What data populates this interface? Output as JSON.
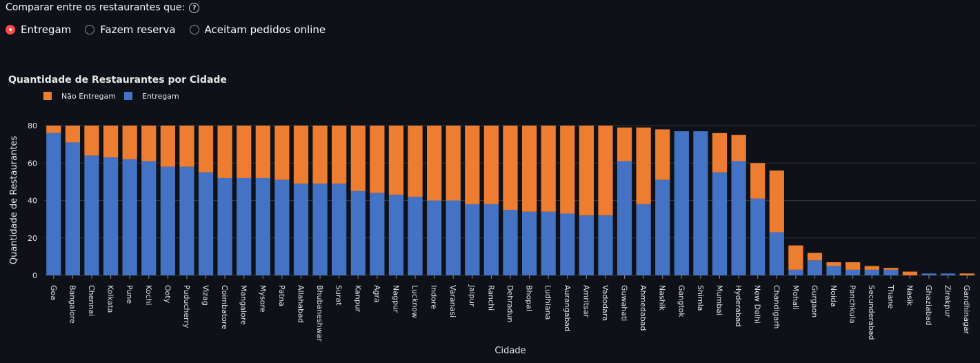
{
  "controls": {
    "prompt": "Comparar entre os restaurantes que:",
    "options": [
      {
        "label": "Entregam",
        "selected": true
      },
      {
        "label": "Fazem reserva",
        "selected": false
      },
      {
        "label": "Aceitam pedidos online",
        "selected": false
      }
    ]
  },
  "chart_data": {
    "type": "bar",
    "stacked": true,
    "title": "Quantidade de Restaurantes por Cidade",
    "xlabel": "Cidade",
    "ylabel": "Quantidade de Restaurantes",
    "ylim": [
      0,
      80
    ],
    "yticks": [
      0,
      20,
      40,
      60,
      80
    ],
    "grid": true,
    "legend_position": "top-left",
    "categories": [
      "Goa",
      "Bangalore",
      "Chennai",
      "Kolkata",
      "Pune",
      "Kochi",
      "Ooty",
      "Puducherry",
      "Vizag",
      "Coimbatore",
      "Mangalore",
      "Mysore",
      "Patna",
      "Allahabad",
      "Bhubaneshwar",
      "Surat",
      "Kanpur",
      "Agra",
      "Nagpur",
      "Lucknow",
      "Indore",
      "Varanasi",
      "Jaipur",
      "Ranchi",
      "Dehradun",
      "Bhopal",
      "Ludhiana",
      "Aurangabad",
      "Amritsar",
      "Vadodara",
      "Guwahati",
      "Ahmedabad",
      "Nashik",
      "Gangtok",
      "Shimla",
      "Mumbai",
      "Hyderabad",
      "New Delhi",
      "Chandigarh",
      "Mohali",
      "Gurgaon",
      "Noida",
      "Panchkula",
      "Secunderabad",
      "Thane",
      "Nasik",
      "Ghaziabad",
      "Zirakpur",
      "Gandhinagar"
    ],
    "series": [
      {
        "name": "Entregam",
        "color": "#4472c4",
        "values": [
          76,
          71,
          64,
          63,
          62,
          61,
          58,
          58,
          55,
          52,
          52,
          52,
          51,
          49,
          49,
          49,
          45,
          44,
          43,
          42,
          40,
          40,
          38,
          38,
          35,
          34,
          34,
          33,
          32,
          32,
          61,
          38,
          51,
          77,
          77,
          55,
          61,
          41,
          23,
          3,
          8,
          5,
          3,
          3,
          3,
          0,
          1,
          1,
          0
        ]
      },
      {
        "name": "Não Entregam",
        "color": "#ed7d31",
        "values": [
          4,
          9,
          16,
          17,
          18,
          19,
          22,
          22,
          25,
          28,
          28,
          28,
          29,
          31,
          31,
          31,
          35,
          36,
          37,
          38,
          40,
          40,
          42,
          42,
          45,
          46,
          46,
          47,
          48,
          48,
          18,
          41,
          27,
          0,
          0,
          21,
          14,
          19,
          33,
          13,
          4,
          2,
          4,
          2,
          1,
          2,
          0,
          0,
          1
        ]
      }
    ]
  }
}
